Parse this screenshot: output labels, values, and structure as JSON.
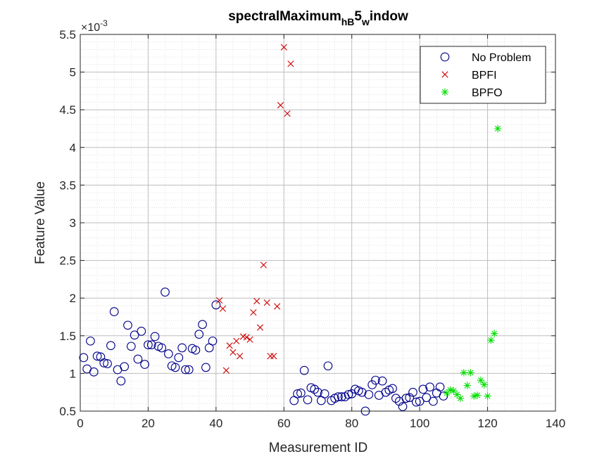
{
  "chart_data": {
    "type": "scatter",
    "title": {
      "base": "spectralMaximum",
      "sub1": "hB",
      "mid": "5",
      "sub2": "w",
      "tail": "indow"
    },
    "xlabel": "Measurement ID",
    "ylabel": "Feature Value",
    "y_exponent": {
      "prefix": "×10",
      "power": "-3"
    },
    "xlim": [
      0,
      140
    ],
    "ylim": [
      0.5,
      5.5
    ],
    "x_ticks": [
      0,
      20,
      40,
      60,
      80,
      100,
      120,
      140
    ],
    "x_tick_labels": [
      "0",
      "20",
      "40",
      "60",
      "80",
      "100",
      "120",
      "140"
    ],
    "y_ticks": [
      0.5,
      1,
      1.5,
      2,
      2.5,
      3,
      3.5,
      4,
      4.5,
      5,
      5.5
    ],
    "y_tick_labels": [
      "0.5",
      "1",
      "1.5",
      "2",
      "2.5",
      "3",
      "3.5",
      "4",
      "4.5",
      "5",
      "5.5"
    ],
    "grid": "major and minor, dotted",
    "legend_position": "top-right",
    "series": [
      {
        "name": "No Problem",
        "marker": "circle",
        "color": "#00008B",
        "points": [
          [
            1,
            1.21
          ],
          [
            2,
            1.06
          ],
          [
            3,
            1.43
          ],
          [
            4,
            1.02
          ],
          [
            5,
            1.23
          ],
          [
            6,
            1.22
          ],
          [
            7,
            1.14
          ],
          [
            8,
            1.13
          ],
          [
            9,
            1.37
          ],
          [
            10,
            1.82
          ],
          [
            11,
            1.05
          ],
          [
            12,
            0.9
          ],
          [
            13,
            1.09
          ],
          [
            14,
            1.64
          ],
          [
            15,
            1.36
          ],
          [
            16,
            1.51
          ],
          [
            17,
            1.19
          ],
          [
            18,
            1.56
          ],
          [
            19,
            1.12
          ],
          [
            20,
            1.38
          ],
          [
            21,
            1.38
          ],
          [
            22,
            1.49
          ],
          [
            23,
            1.36
          ],
          [
            24,
            1.34
          ],
          [
            25,
            2.08
          ],
          [
            26,
            1.26
          ],
          [
            27,
            1.1
          ],
          [
            28,
            1.08
          ],
          [
            29,
            1.21
          ],
          [
            30,
            1.34
          ],
          [
            31,
            1.05
          ],
          [
            32,
            1.05
          ],
          [
            33,
            1.33
          ],
          [
            34,
            1.31
          ],
          [
            35,
            1.52
          ],
          [
            36,
            1.65
          ],
          [
            37,
            1.08
          ],
          [
            38,
            1.34
          ],
          [
            39,
            1.43
          ],
          [
            40,
            1.91
          ],
          [
            63,
            0.64
          ],
          [
            64,
            0.73
          ],
          [
            65,
            0.74
          ],
          [
            66,
            1.04
          ],
          [
            67,
            0.65
          ],
          [
            68,
            0.81
          ],
          [
            69,
            0.79
          ],
          [
            70,
            0.75
          ],
          [
            71,
            0.64
          ],
          [
            72,
            0.73
          ],
          [
            73,
            1.1
          ],
          [
            74,
            0.64
          ],
          [
            75,
            0.67
          ],
          [
            76,
            0.69
          ],
          [
            77,
            0.69
          ],
          [
            78,
            0.69
          ],
          [
            79,
            0.72
          ],
          [
            80,
            0.73
          ],
          [
            81,
            0.79
          ],
          [
            82,
            0.77
          ],
          [
            83,
            0.75
          ],
          [
            84,
            0.5
          ],
          [
            85,
            0.72
          ],
          [
            86,
            0.85
          ],
          [
            87,
            0.91
          ],
          [
            88,
            0.71
          ],
          [
            89,
            0.9
          ],
          [
            90,
            0.75
          ],
          [
            91,
            0.78
          ],
          [
            92,
            0.8
          ],
          [
            93,
            0.67
          ],
          [
            94,
            0.63
          ],
          [
            95,
            0.56
          ],
          [
            96,
            0.67
          ],
          [
            97,
            0.68
          ],
          [
            98,
            0.75
          ],
          [
            99,
            0.62
          ],
          [
            100,
            0.63
          ],
          [
            101,
            0.79
          ],
          [
            102,
            0.68
          ],
          [
            103,
            0.82
          ],
          [
            104,
            0.63
          ],
          [
            105,
            0.74
          ],
          [
            106,
            0.82
          ],
          [
            107,
            0.7
          ]
        ]
      },
      {
        "name": "BPFI",
        "marker": "x",
        "color": "#CC0000",
        "points": [
          [
            41,
            1.97
          ],
          [
            42,
            1.86
          ],
          [
            43,
            1.04
          ],
          [
            44,
            1.37
          ],
          [
            45,
            1.28
          ],
          [
            46,
            1.43
          ],
          [
            47,
            1.23
          ],
          [
            48,
            1.49
          ],
          [
            49,
            1.48
          ],
          [
            50,
            1.45
          ],
          [
            51,
            1.81
          ],
          [
            52,
            1.96
          ],
          [
            53,
            1.61
          ],
          [
            54,
            2.44
          ],
          [
            55,
            1.94
          ],
          [
            56,
            1.23
          ],
          [
            57,
            1.23
          ],
          [
            58,
            1.89
          ],
          [
            59,
            4.56
          ],
          [
            60,
            5.33
          ],
          [
            61,
            4.45
          ],
          [
            62,
            5.11
          ]
        ]
      },
      {
        "name": "BPFO",
        "marker": "asterisk",
        "color": "#00E000",
        "points": [
          [
            108,
            0.74
          ],
          [
            109,
            0.78
          ],
          [
            110,
            0.77
          ],
          [
            111,
            0.72
          ],
          [
            112,
            0.67
          ],
          [
            113,
            1.01
          ],
          [
            114,
            0.84
          ],
          [
            115,
            1.01
          ],
          [
            116,
            0.7
          ],
          [
            117,
            0.71
          ],
          [
            118,
            0.91
          ],
          [
            119,
            0.85
          ],
          [
            120,
            0.7
          ],
          [
            121,
            1.44
          ],
          [
            122,
            1.53
          ],
          [
            123,
            4.25
          ]
        ]
      }
    ]
  }
}
